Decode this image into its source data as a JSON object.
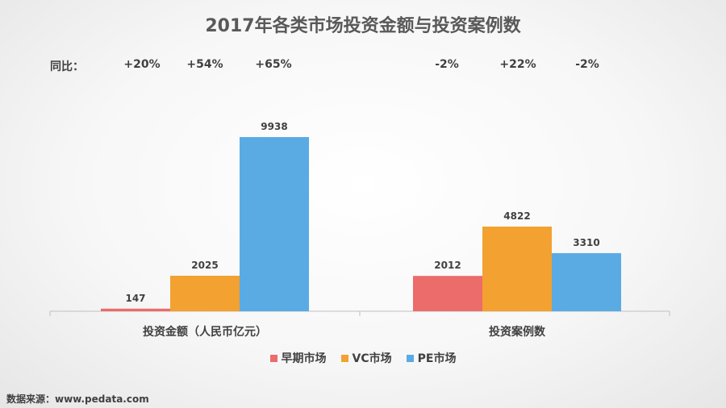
{
  "title": "2017年各类市场投资金额与投资案例数",
  "yoy": {
    "label": "同比：",
    "values": [
      "+20%",
      "+54%",
      "+65%",
      "-2%",
      "+22%",
      "-2%"
    ]
  },
  "source": "数据来源：www.pedata.com",
  "colors": {
    "early": "#ec6b6b",
    "vc": "#f3a130",
    "pe": "#5aabe4"
  },
  "chart_data": {
    "type": "bar",
    "categories": [
      "投资金额（人民币亿元）",
      "投资案例数"
    ],
    "series": [
      {
        "name": "早期市场",
        "values": [
          147,
          2012
        ]
      },
      {
        "name": "VC市场",
        "values": [
          2025,
          4822
        ]
      },
      {
        "name": "PE市场",
        "values": [
          9938,
          3310
        ]
      }
    ],
    "title": "2017年各类市场投资金额与投资案例数",
    "legend": "bottom",
    "grid": false
  }
}
